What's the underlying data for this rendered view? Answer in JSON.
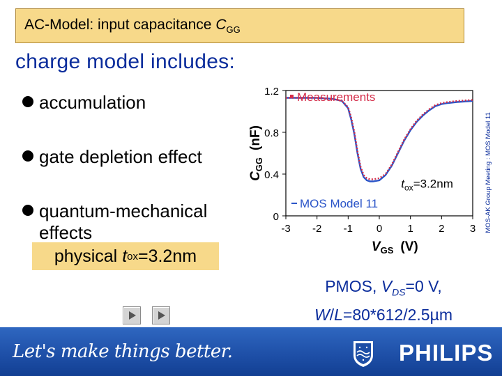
{
  "slide": {
    "title_prefix": "AC-Model: input capacitance ",
    "title_symbol": "C",
    "title_subscript": "GG",
    "heading": "charge model includes:",
    "bullets": [
      "accumulation",
      "gate depletion effect",
      "quantum-mechanical",
      "effects"
    ],
    "physical_box": {
      "prefix": "physical ",
      "symbol": "t",
      "subscript": "ox",
      "suffix": "=3.2nm"
    },
    "caption": {
      "line1_prefix": "PMOS, ",
      "line1_symbol": "V",
      "line1_subscript": "DS",
      "line1_suffix": "=0 V,",
      "line2_w": "W",
      "line2_slash": "/",
      "line2_l": "L",
      "line2_suffix": "=80*612/2.5µm"
    },
    "side_note": "MOS-AK Group Meeting : MOS Model 11",
    "footer": {
      "slogan": "Let's make things better.",
      "brand": "PHILIPS"
    }
  },
  "colors": {
    "title_bg": "#f7d98a",
    "heading": "#0b2d9c",
    "measure": "#d42d4a",
    "model": "#2b55c8",
    "footer": "#1d4ea6"
  },
  "icons": [
    "next-slide-icon",
    "last-slide-icon",
    "philips-shield-icon"
  ],
  "chart_data": {
    "type": "line",
    "xlabel": "V",
    "xlabel_sub": "GS",
    "xlabel_unit": "(V)",
    "ylabel": "C",
    "ylabel_sub": "GG",
    "ylabel_unit": "(nF)",
    "xlim": [
      -3,
      3
    ],
    "ylim": [
      0,
      1.2
    ],
    "x_ticks": [
      "-3",
      "-2",
      "-1",
      "0",
      "1",
      "2",
      "3"
    ],
    "y_ticks": [
      "0",
      "0.4",
      "0.8",
      "1.2"
    ],
    "legend_top": "Measurements",
    "legend_bottom": "MOS Model 11",
    "annotation": {
      "symbol": "t",
      "subscript": "ox",
      "suffix": "=3.2nm"
    },
    "series": [
      {
        "name": "Measurements",
        "style": "dotted",
        "x": [
          -3,
          -2.5,
          -2,
          -1.5,
          -1.2,
          -1.0,
          -0.9,
          -0.8,
          -0.7,
          -0.6,
          -0.5,
          -0.4,
          -0.3,
          -0.2,
          0,
          0.2,
          0.4,
          0.6,
          0.8,
          1.0,
          1.2,
          1.4,
          1.6,
          1.8,
          2.0,
          2.2,
          2.5,
          3.0
        ],
        "y": [
          1.13,
          1.13,
          1.13,
          1.12,
          1.1,
          1.04,
          0.94,
          0.8,
          0.62,
          0.47,
          0.39,
          0.36,
          0.35,
          0.35,
          0.36,
          0.4,
          0.49,
          0.61,
          0.73,
          0.83,
          0.91,
          0.97,
          1.02,
          1.06,
          1.08,
          1.09,
          1.1,
          1.11
        ]
      },
      {
        "name": "MOS Model 11",
        "style": "solid",
        "x": [
          -3,
          -2.5,
          -2,
          -1.5,
          -1.2,
          -1.0,
          -0.9,
          -0.8,
          -0.7,
          -0.6,
          -0.5,
          -0.4,
          -0.3,
          -0.2,
          0,
          0.2,
          0.4,
          0.6,
          0.8,
          1.0,
          1.2,
          1.4,
          1.6,
          1.8,
          2.0,
          2.2,
          2.5,
          3.0
        ],
        "y": [
          1.13,
          1.13,
          1.13,
          1.12,
          1.1,
          1.03,
          0.92,
          0.78,
          0.6,
          0.45,
          0.37,
          0.34,
          0.33,
          0.33,
          0.34,
          0.39,
          0.48,
          0.6,
          0.72,
          0.82,
          0.9,
          0.96,
          1.01,
          1.05,
          1.07,
          1.08,
          1.09,
          1.1
        ]
      }
    ]
  }
}
